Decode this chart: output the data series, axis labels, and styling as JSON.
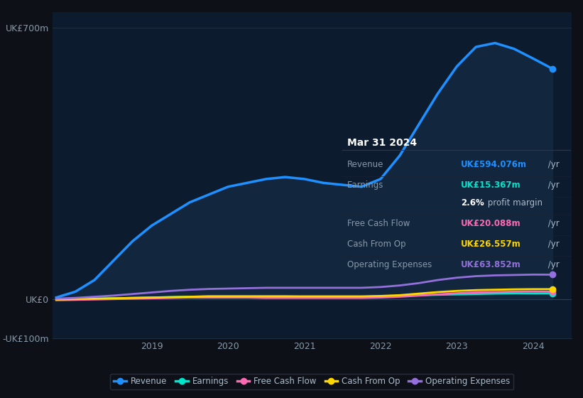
{
  "background_color": "#0d1117",
  "plot_bg_color": "#0d1b2e",
  "title": "Mar 31 2024",
  "info_box": {
    "title": "Mar 31 2024",
    "rows": [
      {
        "label": "Revenue",
        "value": "UK£594.076m",
        "suffix": " /yr",
        "color": "#00aaff"
      },
      {
        "label": "Earnings",
        "value": "UK£15.367m",
        "suffix": " /yr",
        "color": "#00ffcc"
      },
      {
        "label": "",
        "value": "2.6%",
        "suffix": " profit margin",
        "color": "#ffffff",
        "bold_value": true
      },
      {
        "label": "Free Cash Flow",
        "value": "UK£20.088m",
        "suffix": " /yr",
        "color": "#ff69b4"
      },
      {
        "label": "Cash From Op",
        "value": "UK£26.557m",
        "suffix": " /yr",
        "color": "#ffd700"
      },
      {
        "label": "Operating Expenses",
        "value": "UK£63.852m",
        "suffix": " /yr",
        "color": "#9370db"
      }
    ]
  },
  "ylim": [
    -100,
    740
  ],
  "yticks": [
    -100,
    0,
    700
  ],
  "ytick_labels": [
    "-UK£100m",
    "UK£0",
    "UK£700m"
  ],
  "xlim_start": 2017.7,
  "xlim_end": 2024.5,
  "xticks": [
    2019,
    2020,
    2021,
    2022,
    2023,
    2024
  ],
  "grid_color": "#1e2d40",
  "series": {
    "Revenue": {
      "color": "#1e90ff",
      "fill_color": "#1e4060",
      "x": [
        2017.75,
        2018.0,
        2018.25,
        2018.5,
        2018.75,
        2019.0,
        2019.25,
        2019.5,
        2019.75,
        2020.0,
        2020.25,
        2020.5,
        2020.75,
        2021.0,
        2021.25,
        2021.5,
        2021.75,
        2022.0,
        2022.25,
        2022.5,
        2022.75,
        2023.0,
        2023.25,
        2023.5,
        2023.75,
        2024.0,
        2024.25
      ],
      "y": [
        5,
        20,
        50,
        100,
        150,
        190,
        220,
        250,
        270,
        290,
        300,
        310,
        315,
        310,
        300,
        295,
        290,
        310,
        370,
        450,
        530,
        600,
        650,
        660,
        645,
        620,
        594
      ]
    },
    "Earnings": {
      "color": "#00e5cc",
      "x": [
        2017.75,
        2018.0,
        2018.25,
        2018.5,
        2018.75,
        2019.0,
        2019.25,
        2019.5,
        2019.75,
        2020.0,
        2020.25,
        2020.5,
        2020.75,
        2021.0,
        2021.25,
        2021.5,
        2021.75,
        2022.0,
        2022.25,
        2022.5,
        2022.75,
        2023.0,
        2023.25,
        2023.5,
        2023.75,
        2024.0,
        2024.25
      ],
      "y": [
        0,
        1,
        2,
        3,
        4,
        5,
        6,
        7,
        8,
        8,
        8,
        8,
        8,
        7,
        7,
        7,
        7,
        8,
        9,
        11,
        12,
        13,
        14,
        15,
        15.5,
        15.3,
        15.367
      ]
    },
    "Free Cash Flow": {
      "color": "#ff69b4",
      "x": [
        2017.75,
        2018.0,
        2018.25,
        2018.5,
        2018.75,
        2019.0,
        2019.25,
        2019.5,
        2019.75,
        2020.0,
        2020.25,
        2020.5,
        2020.75,
        2021.0,
        2021.25,
        2021.5,
        2021.75,
        2022.0,
        2022.25,
        2022.5,
        2022.75,
        2023.0,
        2023.25,
        2023.5,
        2023.75,
        2024.0,
        2024.25
      ],
      "y": [
        -2,
        -1,
        0,
        1,
        2,
        3,
        4,
        5,
        5,
        5,
        5,
        4,
        4,
        4,
        4,
        4,
        4,
        5,
        7,
        10,
        13,
        16,
        18,
        19,
        20,
        20.5,
        20.088
      ]
    },
    "Cash From Op": {
      "color": "#ffd700",
      "x": [
        2017.75,
        2018.0,
        2018.25,
        2018.5,
        2018.75,
        2019.0,
        2019.25,
        2019.5,
        2019.75,
        2020.0,
        2020.25,
        2020.5,
        2020.75,
        2021.0,
        2021.25,
        2021.5,
        2021.75,
        2022.0,
        2022.25,
        2022.5,
        2022.75,
        2023.0,
        2023.25,
        2023.5,
        2023.75,
        2024.0,
        2024.25
      ],
      "y": [
        0,
        1,
        2,
        3,
        4,
        5,
        6,
        7,
        8,
        8,
        8,
        8,
        8,
        8,
        8,
        8,
        8,
        9,
        11,
        15,
        19,
        22,
        24,
        25,
        26,
        26.5,
        26.557
      ]
    },
    "Operating Expenses": {
      "color": "#9370db",
      "x": [
        2017.75,
        2018.0,
        2018.25,
        2018.5,
        2018.75,
        2019.0,
        2019.25,
        2019.5,
        2019.75,
        2020.0,
        2020.25,
        2020.5,
        2020.75,
        2021.0,
        2021.25,
        2021.5,
        2021.75,
        2022.0,
        2022.25,
        2022.5,
        2022.75,
        2023.0,
        2023.25,
        2023.5,
        2023.75,
        2024.0,
        2024.25
      ],
      "y": [
        2,
        4,
        7,
        10,
        14,
        18,
        22,
        25,
        27,
        28,
        29,
        30,
        30,
        30,
        30,
        30,
        30,
        32,
        36,
        42,
        50,
        56,
        60,
        62,
        63,
        64,
        63.852
      ]
    }
  },
  "legend": [
    {
      "label": "Revenue",
      "color": "#1e90ff"
    },
    {
      "label": "Earnings",
      "color": "#00e5cc"
    },
    {
      "label": "Free Cash Flow",
      "color": "#ff69b4"
    },
    {
      "label": "Cash From Op",
      "color": "#ffd700"
    },
    {
      "label": "Operating Expenses",
      "color": "#9370db"
    }
  ]
}
